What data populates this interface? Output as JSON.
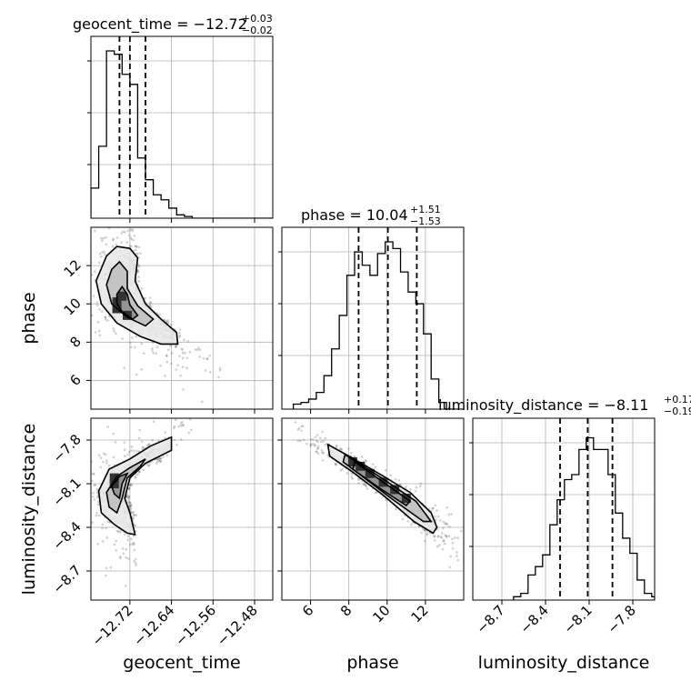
{
  "chart_data": {
    "type": "corner",
    "parameters": [
      {
        "name": "geocent_time",
        "axis_label": "geocent_time",
        "title": {
          "main": "geocent_time = −12.72",
          "plus": "+0.03",
          "minus": "−0.02"
        },
        "range": [
          -12.795,
          -12.445
        ],
        "ticks": [
          -12.72,
          -12.64,
          -12.56,
          -12.48
        ],
        "tick_labels": [
          "−12.72",
          "−12.64",
          "−12.56",
          "−12.48"
        ],
        "quantiles": [
          -12.74,
          -12.72,
          -12.69
        ],
        "histogram": {
          "bin_edges": [
            -12.795,
            -12.78,
            -12.765,
            -12.75,
            -12.735,
            -12.72,
            -12.705,
            -12.69,
            -12.675,
            -12.66,
            -12.645,
            -12.63,
            -12.615,
            -12.6,
            -12.585,
            -12.57
          ],
          "counts": [
            0.18,
            0.43,
            1.0,
            0.98,
            0.86,
            0.8,
            0.36,
            0.23,
            0.14,
            0.11,
            0.06,
            0.02,
            0.01,
            0.0,
            0.0
          ]
        }
      },
      {
        "name": "phase",
        "axis_label": "phase",
        "title": {
          "main": "phase = 10.04",
          "plus": "+1.51",
          "minus": "−1.53"
        },
        "range": [
          4.5,
          14.0
        ],
        "ticks": [
          6,
          8,
          10,
          12
        ],
        "tick_labels": [
          "6",
          "8",
          "10",
          "12"
        ],
        "quantiles": [
          8.51,
          10.04,
          11.55
        ],
        "histogram": {
          "bin_edges": [
            5.1,
            5.5,
            5.9,
            6.3,
            6.7,
            7.1,
            7.5,
            7.9,
            8.3,
            8.7,
            9.1,
            9.5,
            9.9,
            10.3,
            10.7,
            11.1,
            11.5,
            11.9,
            12.3,
            12.7,
            13.1
          ],
          "counts": [
            0.03,
            0.04,
            0.06,
            0.1,
            0.2,
            0.36,
            0.56,
            0.8,
            0.94,
            0.86,
            0.8,
            0.93,
            1.0,
            0.96,
            0.82,
            0.7,
            0.63,
            0.45,
            0.18,
            0.04
          ]
        }
      },
      {
        "name": "luminosity_distance",
        "axis_label": "luminosity_distance",
        "title": {
          "main": "luminosity_distance = −8.11",
          "plus": "+0.17",
          "minus": "−0.19"
        },
        "range": [
          -8.9,
          -7.65
        ],
        "ticks": [
          -8.7,
          -8.4,
          -8.1,
          -7.8
        ],
        "tick_labels": [
          "−8.7",
          "−8.4",
          "−8.1",
          "−7.8"
        ],
        "quantiles": [
          -8.3,
          -8.11,
          -7.94
        ],
        "histogram": {
          "bin_edges": [
            -8.62,
            -8.57,
            -8.52,
            -8.47,
            -8.42,
            -8.37,
            -8.32,
            -8.27,
            -8.22,
            -8.17,
            -8.12,
            -8.07,
            -8.02,
            -7.97,
            -7.92,
            -7.87,
            -7.82,
            -7.77,
            -7.72,
            -7.67,
            -7.65
          ],
          "counts": [
            0.02,
            0.04,
            0.15,
            0.2,
            0.27,
            0.45,
            0.6,
            0.72,
            0.75,
            0.9,
            0.97,
            0.9,
            0.9,
            0.75,
            0.52,
            0.37,
            0.28,
            0.12,
            0.04,
            0.02
          ]
        }
      }
    ],
    "pairs": [
      {
        "x": "geocent_time",
        "y": "phase",
        "contours": [
          {
            "level": "outer",
            "points": [
              [
                -12.765,
                12.5
              ],
              [
                -12.745,
                13.0
              ],
              [
                -12.72,
                12.9
              ],
              [
                -12.705,
                12.4
              ],
              [
                -12.71,
                11.2
              ],
              [
                -12.69,
                10.0
              ],
              [
                -12.66,
                9.2
              ],
              [
                -12.63,
                8.5
              ],
              [
                -12.628,
                7.9
              ],
              [
                -12.66,
                7.9
              ],
              [
                -12.7,
                8.3
              ],
              [
                -12.745,
                9.0
              ],
              [
                -12.775,
                10.0
              ],
              [
                -12.785,
                11.2
              ]
            ]
          },
          {
            "level": "middle",
            "points": [
              [
                -12.755,
                11.8
              ],
              [
                -12.74,
                12.2
              ],
              [
                -12.725,
                11.7
              ],
              [
                -12.725,
                10.8
              ],
              [
                -12.705,
                9.9
              ],
              [
                -12.675,
                9.2
              ],
              [
                -12.69,
                8.85
              ],
              [
                -12.725,
                9.3
              ],
              [
                -12.755,
                10.0
              ],
              [
                -12.765,
                11.0
              ]
            ]
          },
          {
            "level": "inner",
            "points": [
              [
                -12.745,
                10.5
              ],
              [
                -12.735,
                10.9
              ],
              [
                -12.725,
                10.5
              ],
              [
                -12.72,
                9.95
              ],
              [
                -12.705,
                9.4
              ],
              [
                -12.715,
                9.2
              ],
              [
                -12.735,
                9.6
              ],
              [
                -12.745,
                10.0
              ]
            ]
          }
        ],
        "density_blocks": [
          [
            -12.745,
            10.1
          ],
          [
            -12.745,
            9.75
          ],
          [
            -12.725,
            9.4
          ],
          [
            -12.735,
            10.4
          ]
        ]
      },
      {
        "x": "geocent_time",
        "y": "luminosity_distance",
        "contours": [
          {
            "level": "outer",
            "points": [
              [
                -12.78,
                -8.15
              ],
              [
                -12.76,
                -8.0
              ],
              [
                -12.72,
                -7.93
              ],
              [
                -12.68,
                -7.84
              ],
              [
                -12.64,
                -7.78
              ],
              [
                -12.64,
                -7.87
              ],
              [
                -12.69,
                -7.96
              ],
              [
                -12.72,
                -8.06
              ],
              [
                -12.73,
                -8.2
              ],
              [
                -12.72,
                -8.3
              ],
              [
                -12.71,
                -8.45
              ],
              [
                -12.725,
                -8.44
              ],
              [
                -12.75,
                -8.38
              ],
              [
                -12.775,
                -8.3
              ]
            ]
          },
          {
            "level": "middle",
            "points": [
              [
                -12.765,
                -8.16
              ],
              [
                -12.745,
                -8.05
              ],
              [
                -12.72,
                -7.99
              ],
              [
                -12.69,
                -7.93
              ],
              [
                -12.7,
                -7.98
              ],
              [
                -12.725,
                -8.06
              ],
              [
                -12.735,
                -8.2
              ],
              [
                -12.745,
                -8.3
              ],
              [
                -12.76,
                -8.26
              ]
            ]
          },
          {
            "level": "inner",
            "points": [
              [
                -12.755,
                -8.12
              ],
              [
                -12.74,
                -8.05
              ],
              [
                -12.725,
                -8.03
              ],
              [
                -12.735,
                -8.1
              ],
              [
                -12.74,
                -8.2
              ],
              [
                -12.75,
                -8.17
              ]
            ]
          }
        ],
        "density_blocks": [
          [
            -12.75,
            -8.1
          ],
          [
            -12.75,
            -8.06
          ]
        ]
      },
      {
        "x": "phase",
        "y": "luminosity_distance",
        "contours": [
          {
            "level": "outer",
            "points": [
              [
                6.9,
                -7.83
              ],
              [
                8.0,
                -7.91
              ],
              [
                9.7,
                -8.04
              ],
              [
                11.2,
                -8.16
              ],
              [
                12.3,
                -8.3
              ],
              [
                12.6,
                -8.4
              ],
              [
                12.4,
                -8.44
              ],
              [
                11.4,
                -8.36
              ],
              [
                9.8,
                -8.18
              ],
              [
                8.2,
                -8.02
              ],
              [
                7.0,
                -7.91
              ]
            ]
          },
          {
            "level": "middle",
            "points": [
              [
                7.8,
                -7.9
              ],
              [
                9.7,
                -8.06
              ],
              [
                11.5,
                -8.22
              ],
              [
                12.3,
                -8.36
              ],
              [
                11.9,
                -8.36
              ],
              [
                10.2,
                -8.2
              ],
              [
                8.6,
                -8.04
              ],
              [
                7.7,
                -7.95
              ]
            ]
          },
          {
            "level": "inner",
            "points": [
              [
                8.3,
                -7.95
              ],
              [
                9.8,
                -8.09
              ],
              [
                11.2,
                -8.22
              ],
              [
                11.0,
                -8.25
              ],
              [
                9.6,
                -8.13
              ],
              [
                8.2,
                -8.0
              ]
            ]
          }
        ],
        "density_blocks": [
          [
            8.2,
            -7.95
          ],
          [
            8.6,
            -7.98
          ],
          [
            9.1,
            -8.03
          ],
          [
            9.8,
            -8.09
          ],
          [
            10.4,
            -8.14
          ],
          [
            11.0,
            -8.2
          ]
        ]
      }
    ],
    "grid": true
  }
}
